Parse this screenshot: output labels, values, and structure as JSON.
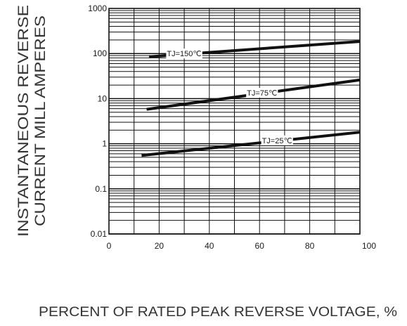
{
  "chart_data": {
    "type": "line",
    "title": "",
    "xlabel": "PERCENT  OF  RATED PEAK REVERSE VOLTAGE,  %",
    "ylabel_lines": [
      "INSTANTANEOUS REVERSE",
      "CURRENT MILL AMPERES"
    ],
    "x_scale": "linear",
    "y_scale": "log",
    "xlim": [
      0,
      100
    ],
    "ylim": [
      0.01,
      1000
    ],
    "x_ticks": [
      0,
      20,
      40,
      60,
      80,
      100
    ],
    "x_tick_labels": [
      "0",
      "20",
      "40",
      "60",
      "80",
      "100"
    ],
    "y_ticks": [
      0.01,
      0.1,
      1,
      10,
      100,
      1000
    ],
    "y_tick_labels": [
      "0.01",
      "0.1",
      "1",
      "10",
      "100",
      "1000"
    ],
    "grid": true,
    "series": [
      {
        "name": "TJ=150℃",
        "x": [
          16,
          100
        ],
        "y": [
          85,
          185
        ],
        "label_at": 30
      },
      {
        "name": "TJ=75℃",
        "x": [
          15,
          100
        ],
        "y": [
          5.8,
          26
        ],
        "label_at": 61
      },
      {
        "name": "TJ=25℃",
        "x": [
          13,
          100
        ],
        "y": [
          0.55,
          1.8
        ],
        "label_at": 67
      }
    ]
  }
}
